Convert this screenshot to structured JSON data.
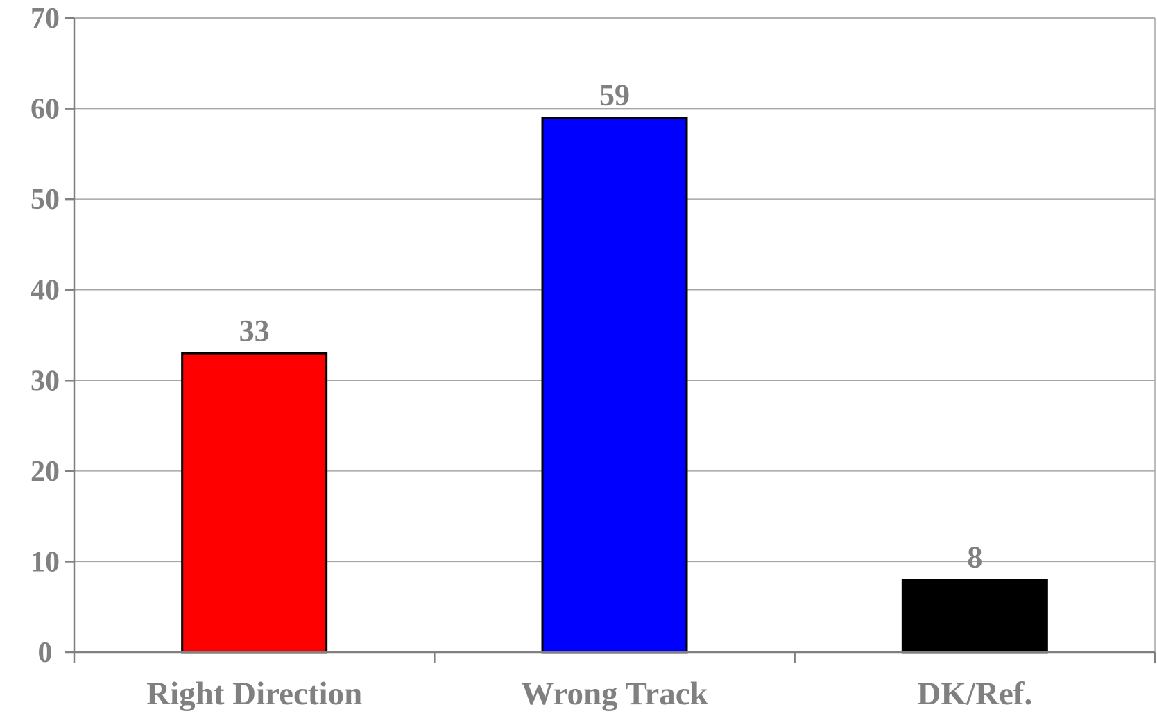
{
  "chart_data": {
    "type": "bar",
    "categories": [
      "Right Direction",
      "Wrong Track",
      "DK/Ref."
    ],
    "values": [
      33,
      59,
      8
    ],
    "data_labels": [
      "33",
      "59",
      "8"
    ],
    "ylim": [
      0,
      70
    ],
    "yticks": [
      0,
      10,
      20,
      30,
      40,
      50,
      60,
      70
    ],
    "title": "",
    "xlabel": "",
    "ylabel": "",
    "grid": true,
    "legend": "none",
    "colors": [
      "#ff0000",
      "#0000ff",
      "#000000"
    ],
    "axis_color": "#808080",
    "gridline_color": "#a6a6a6",
    "text_color": "#808080"
  }
}
